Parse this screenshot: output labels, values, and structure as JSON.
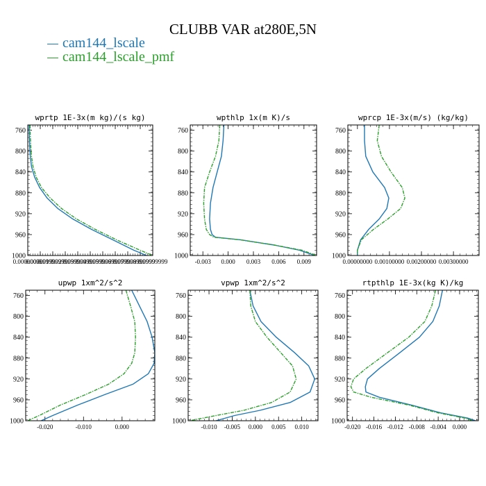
{
  "title": "CLUBB VAR at280E,5N",
  "legend": [
    {
      "label": "cam144_lscale",
      "color": "#1f77b4"
    },
    {
      "label": "cam144_lscale_pmf",
      "color": "#2ca02c"
    }
  ],
  "chart_data": [
    {
      "type": "line",
      "title": "wprtp  1E-3x(m kg)/(s kg)",
      "y_axis": "pressure (inverted)",
      "ylim": [
        750,
        1000
      ],
      "yticks": [
        760,
        800,
        840,
        880,
        920,
        960,
        1000
      ],
      "xlim": [
        0.0,
        0.1
      ],
      "xtick_labels": [
        "0.00000000",
        "0.00999999",
        "0.01999999",
        "0.02999999",
        "0.03999999",
        "0.04999999",
        "0.05999999",
        "0.06999999",
        "0.07999999",
        "0.08999999",
        "0.09999999"
      ],
      "xtick_values": [
        0.0,
        0.01,
        0.02,
        0.03,
        0.04,
        0.05,
        0.06,
        0.07,
        0.08,
        0.09,
        0.1
      ],
      "y": [
        750,
        770,
        790,
        810,
        830,
        850,
        870,
        890,
        910,
        930,
        950,
        970,
        990,
        1000
      ],
      "series": [
        {
          "name": "cam144_lscale",
          "x": [
            0.001,
            0.0012,
            0.0015,
            0.002,
            0.003,
            0.0055,
            0.0095,
            0.0155,
            0.024,
            0.036,
            0.051,
            0.068,
            0.085,
            0.095
          ]
        },
        {
          "name": "cam144_lscale_pmf",
          "x": [
            0.0018,
            0.002,
            0.0024,
            0.003,
            0.0042,
            0.0068,
            0.011,
            0.018,
            0.027,
            0.039,
            0.054,
            0.071,
            0.09,
            0.1
          ]
        }
      ]
    },
    {
      "type": "line",
      "title": "wpthlp  1x(m K)/s",
      "y_axis": "pressure (inverted)",
      "ylim": [
        750,
        1000
      ],
      "yticks": [
        760,
        800,
        840,
        880,
        920,
        960,
        1000
      ],
      "xlim": [
        -0.0045,
        0.0105
      ],
      "xtick_labels": [
        "-0.003",
        "0.000",
        "0.003",
        "0.006",
        "0.009"
      ],
      "xtick_values": [
        -0.003,
        0.0,
        0.003,
        0.006,
        0.009
      ],
      "y": [
        750,
        780,
        810,
        840,
        870,
        900,
        930,
        950,
        960,
        965,
        970,
        980,
        990,
        1000
      ],
      "series": [
        {
          "name": "cam144_lscale",
          "x": [
            -0.0005,
            -0.0006,
            -0.0008,
            -0.0013,
            -0.0018,
            -0.0021,
            -0.0022,
            -0.0021,
            -0.0019,
            -0.0015,
            0.0015,
            0.0055,
            0.0085,
            0.0103
          ]
        },
        {
          "name": "cam144_lscale_pmf",
          "x": [
            -0.001,
            -0.0011,
            -0.0015,
            -0.0022,
            -0.0028,
            -0.0029,
            -0.0028,
            -0.0026,
            -0.0022,
            -0.0017,
            0.0014,
            0.0055,
            0.0088,
            0.0105
          ]
        }
      ]
    },
    {
      "type": "line",
      "title": "wprcp  1E-3x(m/s) (kg/kg)",
      "y_axis": "pressure (inverted)",
      "ylim": [
        750,
        1000
      ],
      "yticks": [
        760,
        800,
        840,
        880,
        920,
        960,
        1000
      ],
      "xlim": [
        -0.0003,
        0.0038
      ],
      "xtick_labels": [
        "0.00000000",
        "0.00100000",
        "0.00200000",
        "0.00300000"
      ],
      "xtick_values": [
        0.0,
        0.001,
        0.002,
        0.003
      ],
      "y": [
        750,
        780,
        810,
        840,
        870,
        890,
        910,
        930,
        950,
        970,
        990,
        1000
      ],
      "series": [
        {
          "name": "cam144_lscale",
          "x": [
            0.00022,
            0.00022,
            0.00026,
            0.00048,
            0.00085,
            0.00098,
            0.00092,
            0.00068,
            0.00035,
            0.0001,
            0.0,
            0.0
          ]
        },
        {
          "name": "cam144_lscale_pmf",
          "x": [
            0.00068,
            0.00062,
            0.00075,
            0.00105,
            0.0014,
            0.00148,
            0.00135,
            0.00095,
            0.0005,
            0.00012,
            0.0,
            0.0
          ]
        }
      ]
    },
    {
      "type": "line",
      "title": "upwp  1xm^2/s^2",
      "y_axis": "pressure (inverted)",
      "ylim": [
        750,
        1000
      ],
      "yticks": [
        760,
        800,
        840,
        880,
        920,
        960,
        1000
      ],
      "xlim": [
        -0.025,
        0.0085
      ],
      "xtick_labels": [
        "-0.020",
        "-0.010",
        "0.000"
      ],
      "xtick_values": [
        -0.02,
        -0.01,
        0.0
      ],
      "y": [
        750,
        780,
        810,
        840,
        870,
        890,
        910,
        930,
        950,
        970,
        990,
        1000
      ],
      "series": [
        {
          "name": "cam144_lscale",
          "x": [
            0.0025,
            0.0045,
            0.0065,
            0.0078,
            0.0085,
            0.0083,
            0.0068,
            0.0028,
            -0.0045,
            -0.0115,
            -0.018,
            -0.021
          ]
        },
        {
          "name": "cam144_lscale_pmf",
          "x": [
            0.001,
            0.0022,
            0.0033,
            0.0035,
            0.0033,
            0.0025,
            0.0005,
            -0.0035,
            -0.0095,
            -0.016,
            -0.0215,
            -0.0245
          ]
        }
      ]
    },
    {
      "type": "line",
      "title": "vpwp  1xm^2/s^2",
      "y_axis": "pressure (inverted)",
      "ylim": [
        750,
        1000
      ],
      "yticks": [
        760,
        800,
        840,
        880,
        920,
        960,
        1000
      ],
      "xlim": [
        -0.0145,
        0.0135
      ],
      "xtick_labels": [
        "-0.010",
        "-0.005",
        "0.000",
        "0.005",
        "0.010"
      ],
      "xtick_values": [
        -0.01,
        -0.005,
        0.0,
        0.005,
        0.01
      ],
      "y": [
        750,
        780,
        810,
        840,
        870,
        895,
        920,
        945,
        965,
        980,
        990,
        1000
      ],
      "series": [
        {
          "name": "cam144_lscale",
          "x": [
            -0.0012,
            -0.0005,
            0.0012,
            0.0045,
            0.0085,
            0.0115,
            0.0128,
            0.0118,
            0.0075,
            0.001,
            -0.0045,
            -0.0085
          ]
        },
        {
          "name": "cam144_lscale_pmf",
          "x": [
            -0.0012,
            -0.001,
            0.0,
            0.0025,
            0.0055,
            0.008,
            0.0088,
            0.0075,
            0.0035,
            -0.0025,
            -0.0085,
            -0.0142
          ]
        }
      ]
    },
    {
      "type": "line",
      "title": "rtpthlp  1E-3x(kg K)/kg",
      "y_axis": "pressure (inverted)",
      "ylim": [
        750,
        1000
      ],
      "yticks": [
        760,
        800,
        840,
        880,
        920,
        960,
        1000
      ],
      "xlim": [
        -0.021,
        0.0035
      ],
      "xtick_labels": [
        "-0.020",
        "-0.016",
        "-0.012",
        "-0.008",
        "-0.004",
        "0.000"
      ],
      "xtick_values": [
        -0.02,
        -0.016,
        -0.012,
        -0.008,
        -0.004,
        0.0
      ],
      "y": [
        750,
        780,
        810,
        840,
        870,
        900,
        920,
        935,
        945,
        955,
        970,
        985,
        995,
        1000
      ],
      "series": [
        {
          "name": "cam144_lscale",
          "x": [
            -0.0032,
            -0.0038,
            -0.005,
            -0.0075,
            -0.0112,
            -0.015,
            -0.0172,
            -0.0176,
            -0.0175,
            -0.015,
            -0.009,
            -0.0035,
            0.0015,
            0.003
          ]
        },
        {
          "name": "cam144_lscale_pmf",
          "x": [
            -0.0045,
            -0.0052,
            -0.0065,
            -0.0095,
            -0.0135,
            -0.0175,
            -0.0198,
            -0.0203,
            -0.0198,
            -0.0165,
            -0.0095,
            -0.004,
            0.001,
            0.0025
          ]
        }
      ]
    }
  ]
}
